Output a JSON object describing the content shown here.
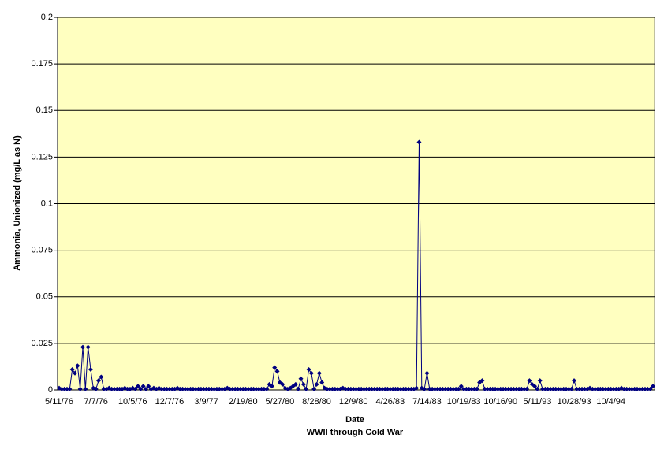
{
  "chart_data": {
    "type": "line",
    "xlabel": "Date",
    "subtitle": "WWII through Cold War",
    "ylabel": "Ammonia, Unionized (mg/L as N)",
    "ylim": [
      0,
      0.2
    ],
    "yticks": [
      0,
      0.025,
      0.05,
      0.075,
      0.1,
      0.125,
      0.15,
      0.175,
      0.2
    ],
    "grid": true,
    "plot_background": "#ffffc0",
    "categories": [
      "5/11/76",
      null,
      null,
      null,
      null,
      null,
      null,
      null,
      null,
      null,
      null,
      null,
      null,
      null,
      "7/7/76",
      null,
      null,
      null,
      null,
      null,
      null,
      null,
      null,
      null,
      null,
      null,
      null,
      null,
      "10/5/76",
      null,
      null,
      null,
      null,
      null,
      null,
      null,
      null,
      null,
      null,
      null,
      null,
      null,
      "12/7/76",
      null,
      null,
      null,
      null,
      null,
      null,
      null,
      null,
      null,
      null,
      null,
      null,
      null,
      "3/9/77",
      null,
      null,
      null,
      null,
      null,
      null,
      null,
      null,
      null,
      null,
      null,
      null,
      null,
      "2/19/80",
      null,
      null,
      null,
      null,
      null,
      null,
      null,
      null,
      null,
      null,
      null,
      null,
      null,
      "5/27/80",
      null,
      null,
      null,
      null,
      null,
      null,
      null,
      null,
      null,
      null,
      null,
      null,
      null,
      "8/28/80",
      null,
      null,
      null,
      null,
      null,
      null,
      null,
      null,
      null,
      null,
      null,
      null,
      null,
      "12/9/80",
      null,
      null,
      null,
      null,
      null,
      null,
      null,
      null,
      null,
      null,
      null,
      null,
      null,
      "4/26/83",
      null,
      null,
      null,
      null,
      null,
      null,
      null,
      null,
      null,
      null,
      null,
      null,
      null,
      "7/14/83",
      null,
      null,
      null,
      null,
      null,
      null,
      null,
      null,
      null,
      null,
      null,
      null,
      null,
      "10/19/83",
      null,
      null,
      null,
      null,
      null,
      null,
      null,
      null,
      null,
      null,
      null,
      null,
      null,
      "10/16/90",
      null,
      null,
      null,
      null,
      null,
      null,
      null,
      null,
      null,
      null,
      null,
      null,
      null,
      "5/11/93",
      null,
      null,
      null,
      null,
      null,
      null,
      null,
      null,
      null,
      null,
      null,
      null,
      null,
      "10/28/93",
      null,
      null,
      null,
      null,
      null,
      null,
      null,
      null,
      null,
      null,
      null,
      null,
      null,
      "10/4/94",
      null,
      null,
      null,
      null,
      null,
      null,
      null,
      null,
      null,
      null,
      null,
      null,
      null,
      null,
      null,
      null
    ],
    "series": [
      {
        "color": "#000080",
        "values": [
          0.001,
          0.0005,
          0.0005,
          0.0005,
          0.0005,
          0.011,
          0.009,
          0.013,
          0.0005,
          0.023,
          0.0005,
          0.023,
          0.011,
          0.001,
          0.0005,
          0.005,
          0.007,
          0.0005,
          0.0005,
          0.001,
          0.0005,
          0.0005,
          0.0005,
          0.0005,
          0.0005,
          0.001,
          0.0005,
          0.0005,
          0.001,
          0.0005,
          0.002,
          0.0005,
          0.002,
          0.0005,
          0.002,
          0.0005,
          0.001,
          0.0005,
          0.001,
          0.0005,
          0.0005,
          0.0005,
          0.0005,
          0.0005,
          0.0005,
          0.001,
          0.0005,
          0.0005,
          0.0005,
          0.0005,
          0.0005,
          0.0005,
          0.0005,
          0.0005,
          0.0005,
          0.0005,
          0.0005,
          0.0005,
          0.0005,
          0.0005,
          0.0005,
          0.0005,
          0.0005,
          0.0005,
          0.001,
          0.0005,
          0.0005,
          0.0005,
          0.0005,
          0.0005,
          0.0005,
          0.0005,
          0.0005,
          0.0005,
          0.0005,
          0.0005,
          0.0005,
          0.0005,
          0.0005,
          0.0005,
          0.003,
          0.002,
          0.012,
          0.01,
          0.004,
          0.003,
          0.001,
          0.0005,
          0.001,
          0.002,
          0.003,
          0.0005,
          0.006,
          0.003,
          0.0005,
          0.011,
          0.009,
          0.0005,
          0.003,
          0.009,
          0.004,
          0.001,
          0.0005,
          0.0005,
          0.0005,
          0.0005,
          0.0005,
          0.0005,
          0.001,
          0.0005,
          0.0005,
          0.0005,
          0.0005,
          0.0005,
          0.0005,
          0.0005,
          0.0005,
          0.0005,
          0.0005,
          0.0005,
          0.0005,
          0.0005,
          0.0005,
          0.0005,
          0.0005,
          0.0005,
          0.0005,
          0.0005,
          0.0005,
          0.0005,
          0.0005,
          0.0005,
          0.0005,
          0.0005,
          0.0005,
          0.0005,
          0.001,
          0.133,
          0.001,
          0.0005,
          0.009,
          0.0005,
          0.0005,
          0.0005,
          0.0005,
          0.0005,
          0.0005,
          0.0005,
          0.0005,
          0.0005,
          0.0005,
          0.0005,
          0.0005,
          0.002,
          0.0005,
          0.0005,
          0.0005,
          0.0005,
          0.0005,
          0.0005,
          0.004,
          0.005,
          0.0005,
          0.0005,
          0.0005,
          0.0005,
          0.0005,
          0.0005,
          0.0005,
          0.0005,
          0.0005,
          0.0005,
          0.0005,
          0.0005,
          0.0005,
          0.0005,
          0.0005,
          0.0005,
          0.0005,
          0.005,
          0.003,
          0.002,
          0.0005,
          0.005,
          0.0005,
          0.0005,
          0.0005,
          0.0005,
          0.0005,
          0.0005,
          0.0005,
          0.0005,
          0.0005,
          0.0005,
          0.0005,
          0.0005,
          0.005,
          0.0005,
          0.0005,
          0.0005,
          0.0005,
          0.0005,
          0.001,
          0.0005,
          0.0005,
          0.0005,
          0.0005,
          0.0005,
          0.0005,
          0.0005,
          0.0005,
          0.0005,
          0.0005,
          0.0005,
          0.001,
          0.0005,
          0.0005,
          0.0005,
          0.0005,
          0.0005,
          0.0005,
          0.0005,
          0.0005,
          0.0005,
          0.0005,
          0.0005,
          0.002
        ]
      }
    ]
  }
}
